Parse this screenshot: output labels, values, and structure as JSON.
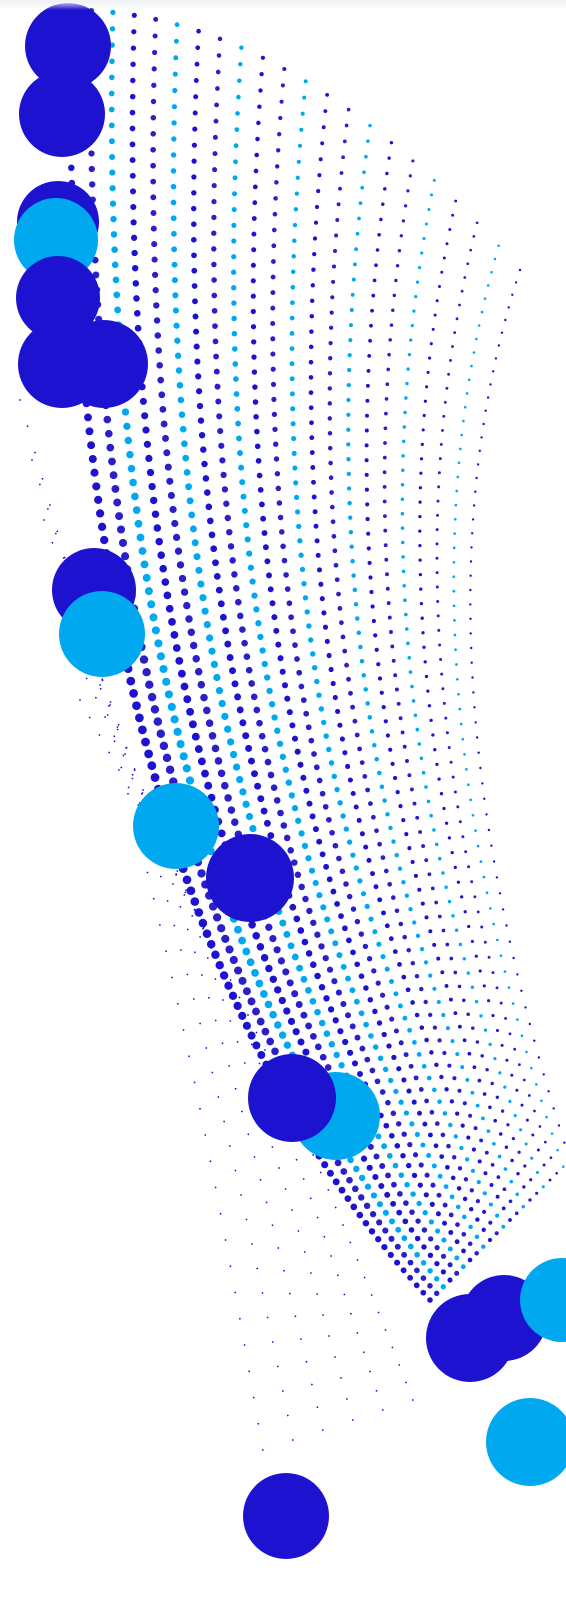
{
  "artwork": {
    "subject": "abstract-dot-wave-pattern",
    "palette": {
      "background": "#ffffff",
      "deep_blue": "#1c12d0",
      "sky_blue": "#00a8f0",
      "indigo": "#2b1fc8"
    }
  }
}
